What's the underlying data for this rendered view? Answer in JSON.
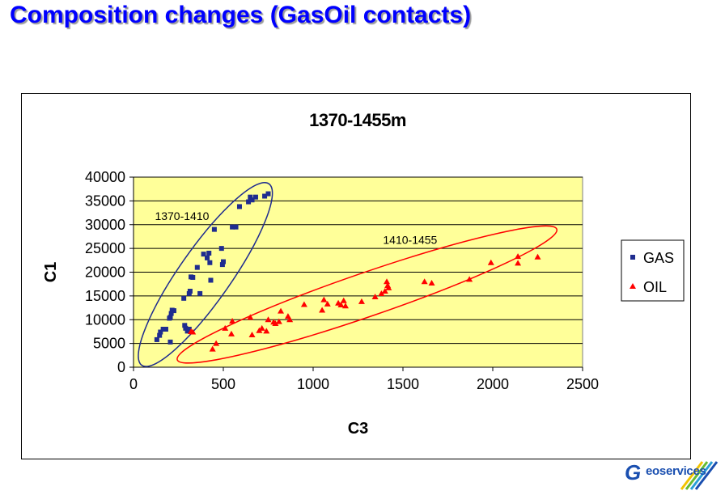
{
  "page": {
    "title": "Composition changes (GasOil contacts)"
  },
  "logo": {
    "text": "eoservices",
    "letter": "G"
  },
  "chart_data": {
    "type": "scatter",
    "title": "1370-1455m",
    "xlabel": "C3",
    "ylabel": "C1",
    "xlim": [
      0,
      2500
    ],
    "ylim": [
      0,
      40000
    ],
    "x_ticks": [
      0,
      500,
      1000,
      1500,
      2000,
      2500
    ],
    "y_ticks": [
      0,
      5000,
      10000,
      15000,
      20000,
      25000,
      30000,
      35000,
      40000
    ],
    "plot_background": "#ffff99",
    "grid": {
      "horizontal": true,
      "vertical": false
    },
    "legend_position": "right",
    "series": [
      {
        "name": "GAS",
        "marker": "square",
        "color": "#1f2c8f",
        "points": [
          [
            130,
            5800
          ],
          [
            145,
            6700
          ],
          [
            150,
            7400
          ],
          [
            165,
            8000
          ],
          [
            180,
            8000
          ],
          [
            200,
            10300
          ],
          [
            205,
            10500
          ],
          [
            210,
            11300
          ],
          [
            215,
            12000
          ],
          [
            225,
            11900
          ],
          [
            280,
            14500
          ],
          [
            285,
            8800
          ],
          [
            290,
            8200
          ],
          [
            300,
            7600
          ],
          [
            310,
            8000
          ],
          [
            310,
            15500
          ],
          [
            315,
            16000
          ],
          [
            320,
            19000
          ],
          [
            330,
            18900
          ],
          [
            355,
            21000
          ],
          [
            370,
            15500
          ],
          [
            390,
            23800
          ],
          [
            410,
            23000
          ],
          [
            420,
            24000
          ],
          [
            425,
            22000
          ],
          [
            430,
            18300
          ],
          [
            450,
            29000
          ],
          [
            490,
            25000
          ],
          [
            495,
            21600
          ],
          [
            500,
            22200
          ],
          [
            550,
            29500
          ],
          [
            570,
            29500
          ],
          [
            590,
            33800
          ],
          [
            640,
            34800
          ],
          [
            650,
            35800
          ],
          [
            660,
            35200
          ],
          [
            680,
            35800
          ],
          [
            730,
            36000
          ],
          [
            750,
            36500
          ],
          [
            205,
            5300
          ]
        ]
      },
      {
        "name": "OIL",
        "marker": "triangle",
        "color": "#ff0000",
        "points": [
          [
            320,
            7500
          ],
          [
            330,
            7400
          ],
          [
            440,
            3800
          ],
          [
            460,
            5000
          ],
          [
            510,
            8200
          ],
          [
            545,
            7000
          ],
          [
            550,
            9700
          ],
          [
            650,
            10500
          ],
          [
            660,
            6800
          ],
          [
            700,
            7700
          ],
          [
            715,
            8200
          ],
          [
            740,
            7600
          ],
          [
            750,
            10000
          ],
          [
            780,
            9500
          ],
          [
            790,
            9200
          ],
          [
            810,
            9600
          ],
          [
            820,
            11800
          ],
          [
            860,
            10700
          ],
          [
            870,
            10000
          ],
          [
            950,
            13200
          ],
          [
            1050,
            12000
          ],
          [
            1060,
            14200
          ],
          [
            1080,
            13300
          ],
          [
            1140,
            13500
          ],
          [
            1155,
            13100
          ],
          [
            1170,
            14000
          ],
          [
            1180,
            12900
          ],
          [
            1270,
            13800
          ],
          [
            1345,
            14800
          ],
          [
            1380,
            15500
          ],
          [
            1400,
            16000
          ],
          [
            1410,
            18000
          ],
          [
            1415,
            17200
          ],
          [
            1420,
            16700
          ],
          [
            1620,
            18000
          ],
          [
            1660,
            17700
          ],
          [
            1870,
            18500
          ],
          [
            1990,
            22000
          ],
          [
            2140,
            21900
          ],
          [
            2140,
            23300
          ],
          [
            2250,
            23200
          ]
        ]
      }
    ],
    "annotations": [
      {
        "text": "1370-1410",
        "x": 270,
        "y": 31000,
        "color": "#000000"
      },
      {
        "text": "1410-1455",
        "x": 1540,
        "y": 26000,
        "color": "#000000"
      }
    ],
    "ellipses": [
      {
        "series": "GAS",
        "color": "#1f2c8f",
        "center": [
          400,
          19500
        ],
        "rx": 21500,
        "ry": 270,
        "angle_note": "encloses GAS cluster"
      },
      {
        "series": "OIL",
        "color": "#ff0000",
        "center": [
          1300,
          15500
        ],
        "rx": 1150,
        "ry": 3000,
        "angle_note": "encloses OIL cluster"
      }
    ]
  }
}
